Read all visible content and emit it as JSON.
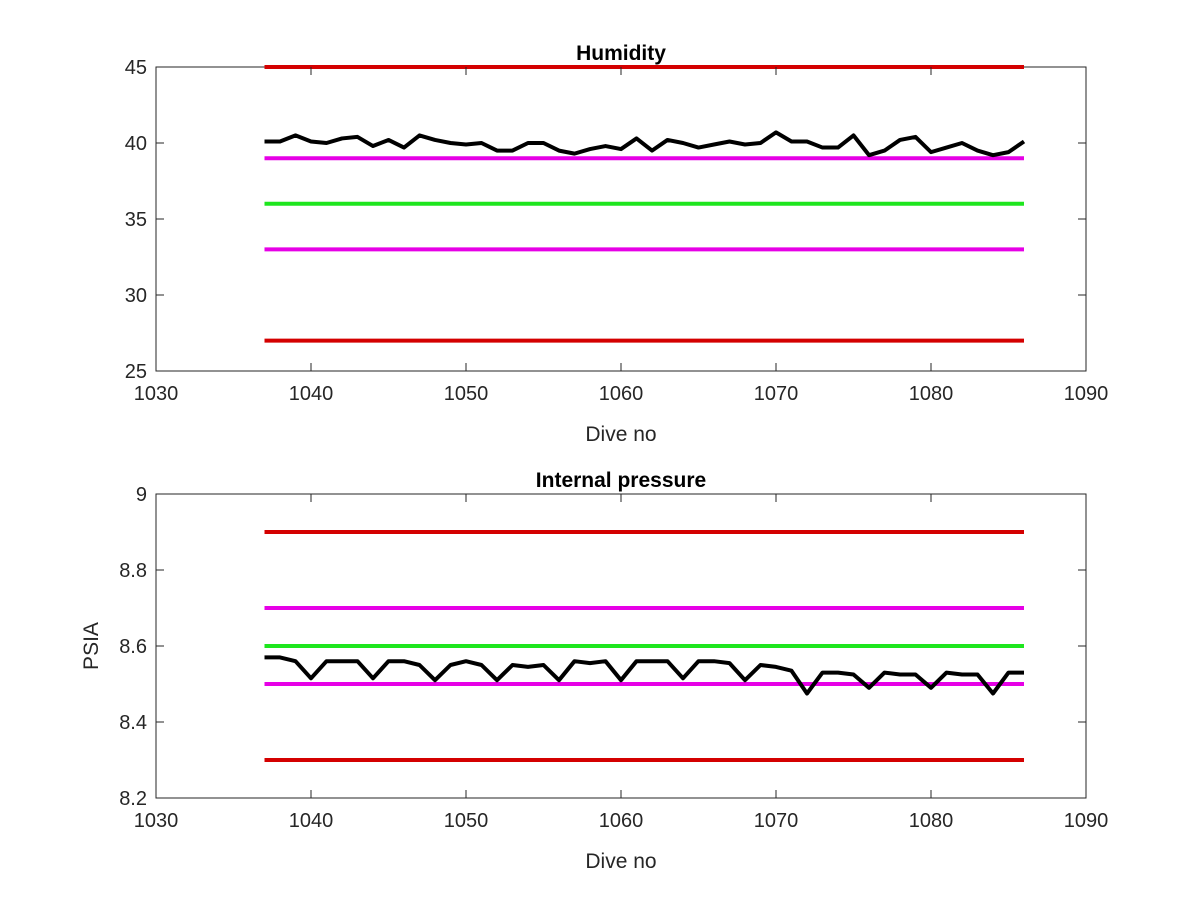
{
  "chart_data": [
    {
      "type": "line",
      "title": "Humidity",
      "xlabel": "Dive no",
      "ylabel": "",
      "xlim": [
        1030,
        1090
      ],
      "ylim": [
        25,
        45
      ],
      "xticks": [
        1030,
        1040,
        1050,
        1060,
        1070,
        1080,
        1090
      ],
      "yticks": [
        25,
        30,
        35,
        40,
        45
      ],
      "grid": false,
      "series": [
        {
          "color": "#d40000",
          "x": [
            1037,
            1086
          ],
          "y": [
            45,
            45
          ]
        },
        {
          "color": "#d40000",
          "x": [
            1037,
            1086
          ],
          "y": [
            27,
            27
          ]
        },
        {
          "color": "#e600e6",
          "x": [
            1037,
            1086
          ],
          "y": [
            39,
            39
          ]
        },
        {
          "color": "#e600e6",
          "x": [
            1037,
            1086
          ],
          "y": [
            33,
            33
          ]
        },
        {
          "color": "#1ee61e",
          "x": [
            1037,
            1086
          ],
          "y": [
            36,
            36
          ]
        },
        {
          "color": "#000000",
          "x": [
            1037,
            1038,
            1039,
            1040,
            1041,
            1042,
            1043,
            1044,
            1045,
            1046,
            1047,
            1048,
            1049,
            1050,
            1051,
            1052,
            1053,
            1054,
            1055,
            1056,
            1057,
            1058,
            1059,
            1060,
            1061,
            1062,
            1063,
            1064,
            1065,
            1066,
            1067,
            1068,
            1069,
            1070,
            1071,
            1072,
            1073,
            1074,
            1075,
            1076,
            1077,
            1078,
            1079,
            1080,
            1081,
            1082,
            1083,
            1084,
            1085,
            1086
          ],
          "y": [
            40.1,
            40.1,
            40.5,
            40.1,
            40.0,
            40.3,
            40.4,
            39.8,
            40.2,
            39.7,
            40.5,
            40.2,
            40.0,
            39.9,
            40.0,
            39.5,
            39.5,
            40.0,
            40.0,
            39.5,
            39.3,
            39.6,
            39.8,
            39.6,
            40.3,
            39.5,
            40.2,
            40.0,
            39.7,
            39.9,
            40.1,
            39.9,
            40.0,
            40.7,
            40.1,
            40.1,
            39.7,
            39.7,
            40.5,
            39.2,
            39.5,
            40.2,
            40.4,
            39.4,
            39.7,
            40.0,
            39.5,
            39.2,
            39.4,
            40.1
          ]
        }
      ]
    },
    {
      "type": "line",
      "title": "Internal pressure",
      "xlabel": "Dive no",
      "ylabel": "PSIA",
      "xlim": [
        1030,
        1090
      ],
      "ylim": [
        8.2,
        9
      ],
      "xticks": [
        1030,
        1040,
        1050,
        1060,
        1070,
        1080,
        1090
      ],
      "yticks": [
        8.2,
        8.4,
        8.6,
        8.8,
        9
      ],
      "grid": false,
      "series": [
        {
          "color": "#d40000",
          "x": [
            1037,
            1086
          ],
          "y": [
            8.9,
            8.9
          ]
        },
        {
          "color": "#d40000",
          "x": [
            1037,
            1086
          ],
          "y": [
            8.3,
            8.3
          ]
        },
        {
          "color": "#e600e6",
          "x": [
            1037,
            1086
          ],
          "y": [
            8.7,
            8.7
          ]
        },
        {
          "color": "#e600e6",
          "x": [
            1037,
            1086
          ],
          "y": [
            8.5,
            8.5
          ]
        },
        {
          "color": "#1ee61e",
          "x": [
            1037,
            1086
          ],
          "y": [
            8.6,
            8.6
          ]
        },
        {
          "color": "#000000",
          "x": [
            1037,
            1038,
            1039,
            1040,
            1041,
            1042,
            1043,
            1044,
            1045,
            1046,
            1047,
            1048,
            1049,
            1050,
            1051,
            1052,
            1053,
            1054,
            1055,
            1056,
            1057,
            1058,
            1059,
            1060,
            1061,
            1062,
            1063,
            1064,
            1065,
            1066,
            1067,
            1068,
            1069,
            1070,
            1071,
            1072,
            1073,
            1074,
            1075,
            1076,
            1077,
            1078,
            1079,
            1080,
            1081,
            1082,
            1083,
            1084,
            1085,
            1086
          ],
          "y": [
            8.57,
            8.57,
            8.56,
            8.515,
            8.56,
            8.56,
            8.56,
            8.515,
            8.56,
            8.56,
            8.55,
            8.51,
            8.55,
            8.56,
            8.55,
            8.51,
            8.55,
            8.545,
            8.55,
            8.51,
            8.56,
            8.555,
            8.56,
            8.51,
            8.56,
            8.56,
            8.56,
            8.515,
            8.56,
            8.56,
            8.555,
            8.51,
            8.55,
            8.545,
            8.535,
            8.475,
            8.53,
            8.53,
            8.525,
            8.49,
            8.53,
            8.525,
            8.525,
            8.49,
            8.53,
            8.525,
            8.525,
            8.475,
            8.53,
            8.53
          ]
        }
      ]
    }
  ]
}
